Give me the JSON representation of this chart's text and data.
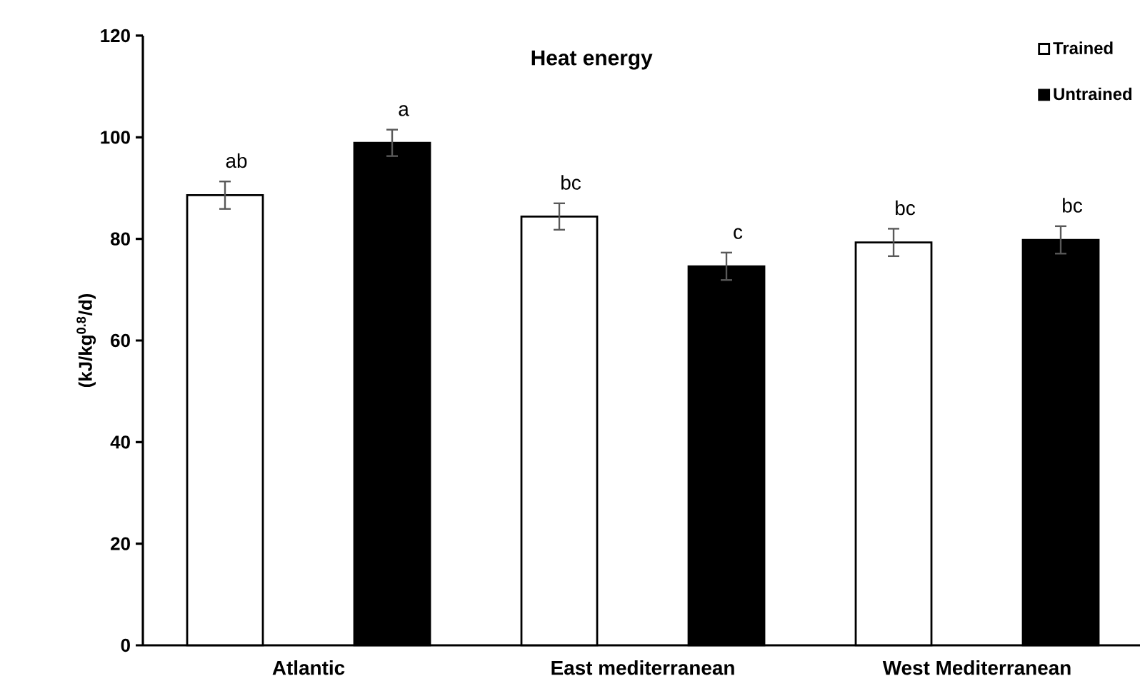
{
  "chart_data": {
    "type": "bar",
    "title": "Heat energy",
    "ylabel": "(kJ/kg$^{0.8}$/d)",
    "categories": [
      "Atlantic",
      "East mediterranean",
      "West Mediterranean"
    ],
    "series": [
      {
        "name": "Trained",
        "color": "#ffffff",
        "values": [
          88.6,
          84.4,
          79.3
        ],
        "errors": [
          2.7,
          2.6,
          2.7
        ]
      },
      {
        "name": "Untrained",
        "color": "#000000",
        "values": [
          98.9,
          74.6,
          79.8
        ],
        "errors": [
          2.6,
          2.7,
          2.7
        ]
      }
    ],
    "ylim": [
      0,
      120
    ],
    "yticks": [
      0,
      20,
      40,
      60,
      80,
      100,
      120
    ],
    "grid": false,
    "legend": "top right",
    "annotations": [
      "ab",
      "a",
      "bc",
      "c",
      "bc",
      "bc"
    ]
  }
}
